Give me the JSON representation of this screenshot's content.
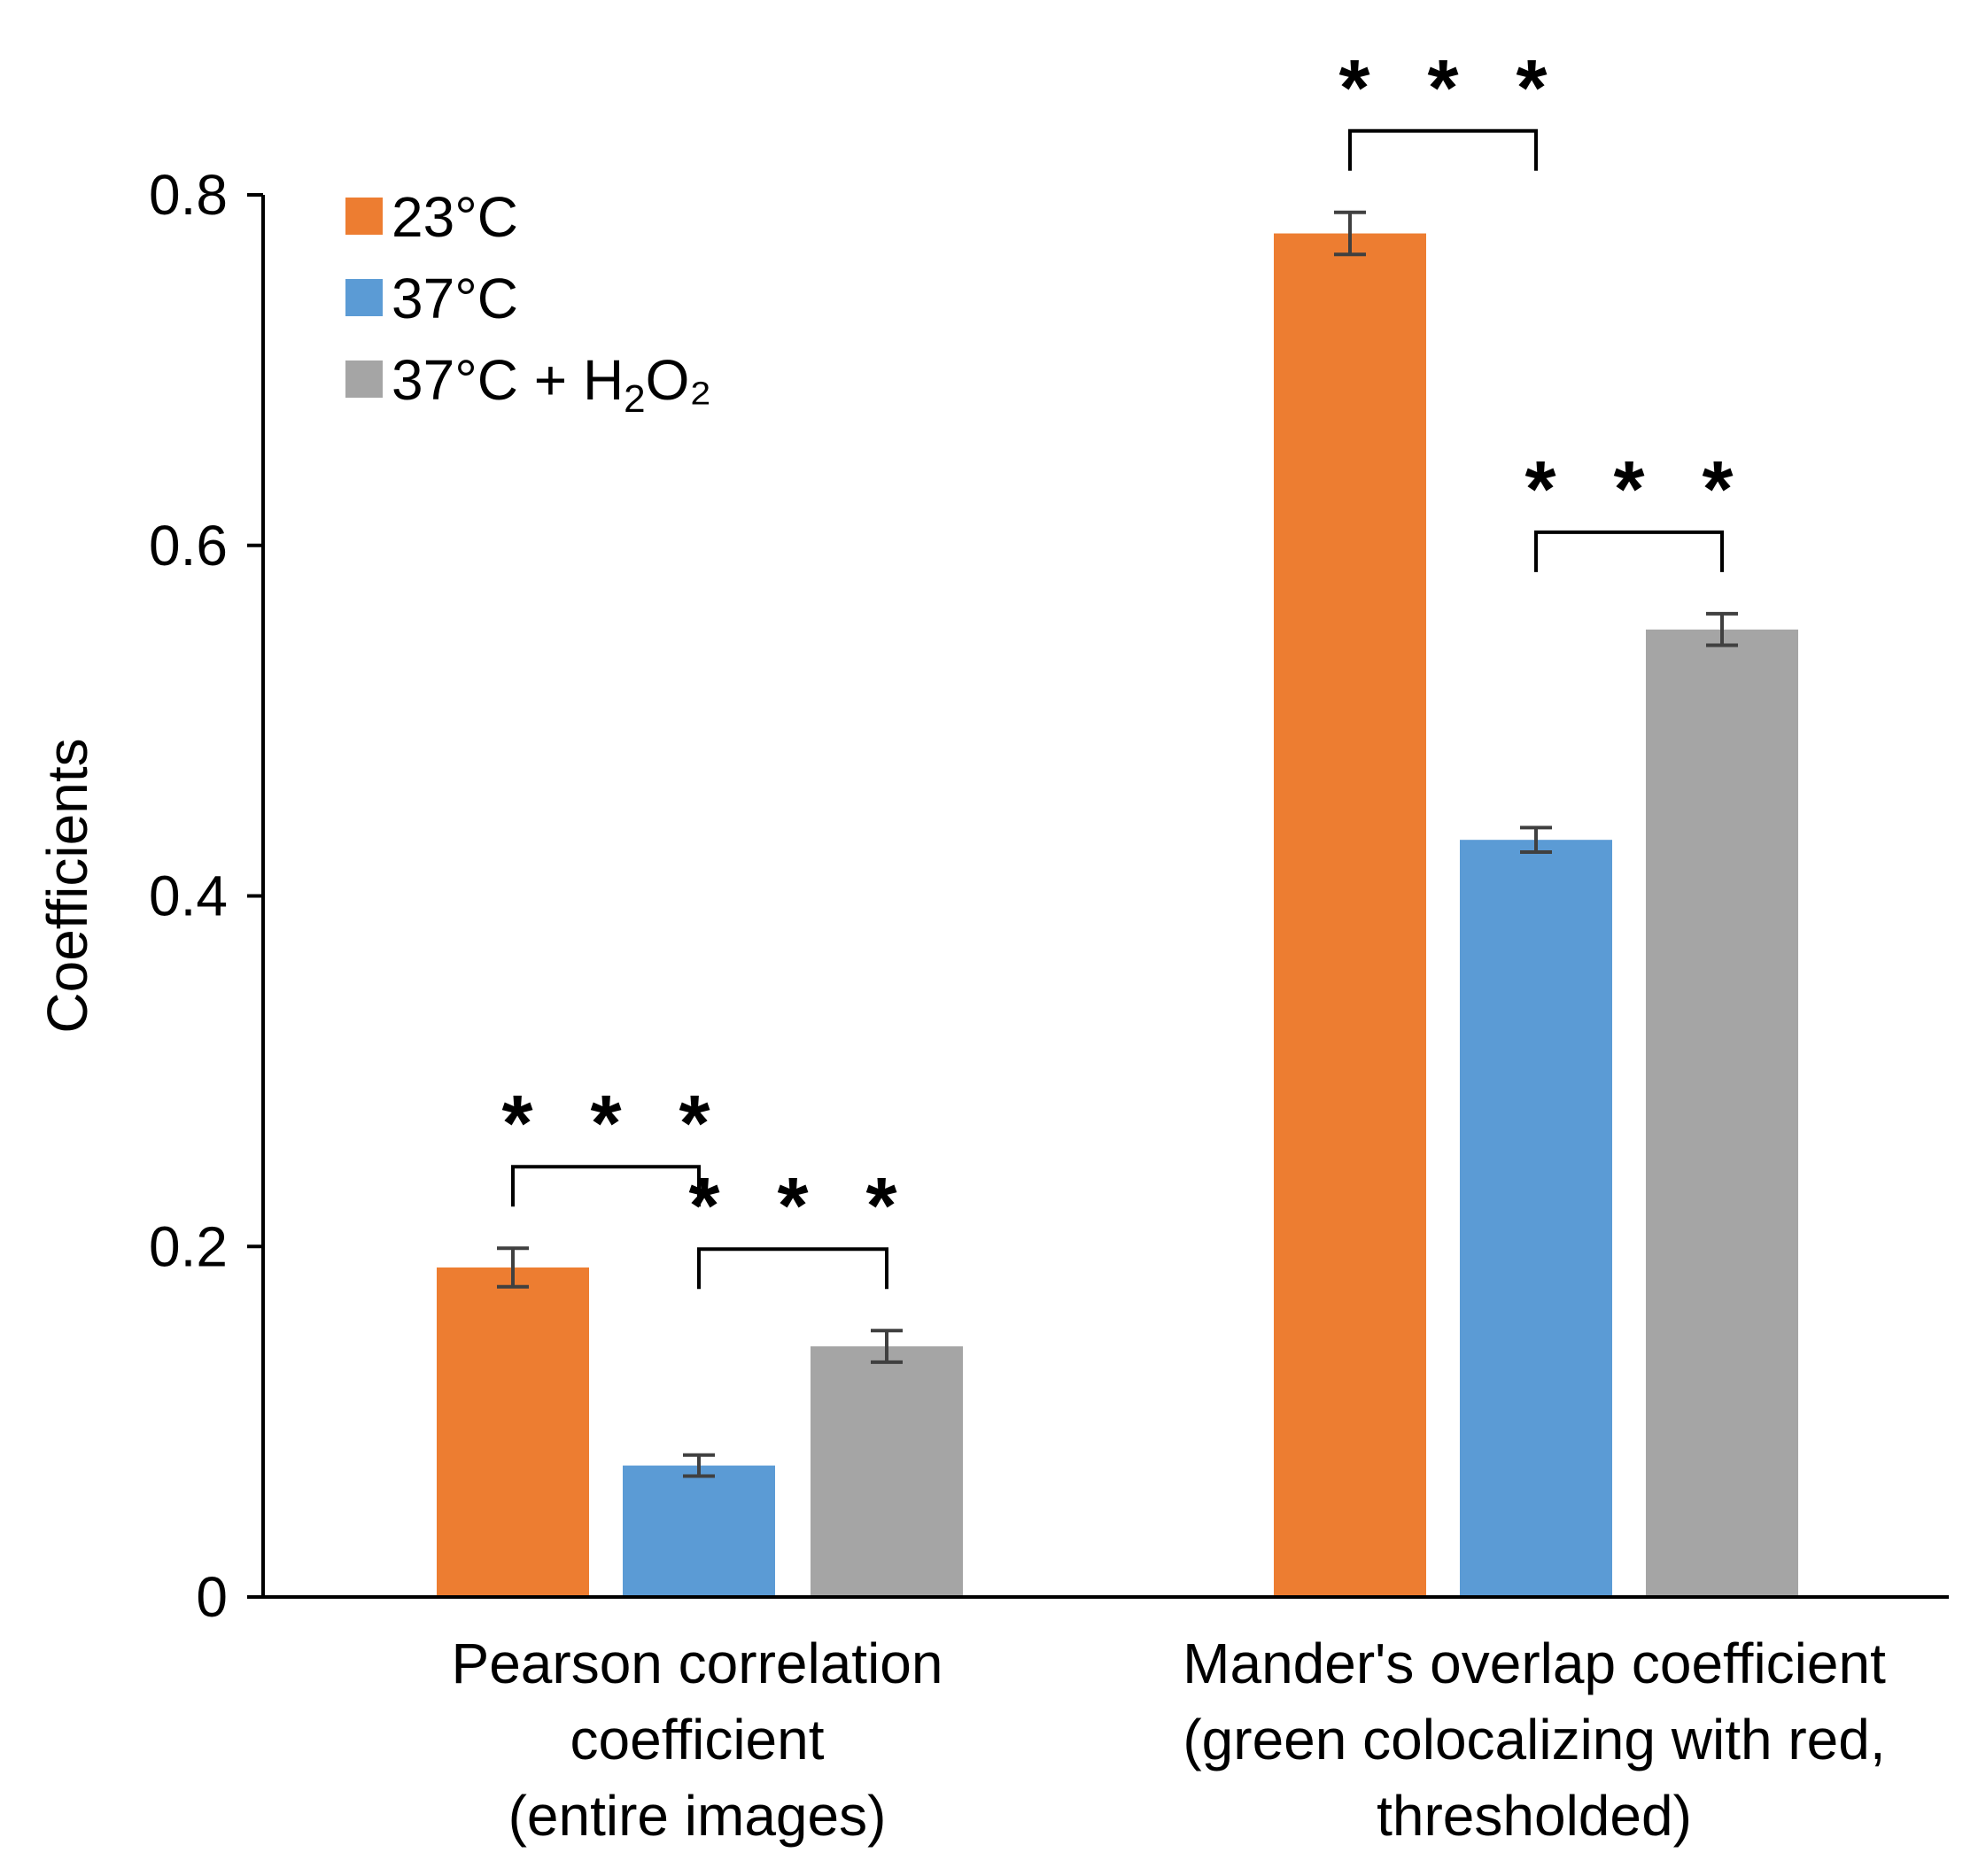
{
  "chart_data": {
    "type": "bar",
    "title": "",
    "xlabel": "",
    "ylabel": "Coefficients",
    "ylim": [
      0,
      0.8
    ],
    "yticks": [
      {
        "value": 0,
        "label": "0"
      },
      {
        "value": 0.2,
        "label": "0.2"
      },
      {
        "value": 0.4,
        "label": "0.4"
      },
      {
        "value": 0.6,
        "label": "0.6"
      },
      {
        "value": 0.8,
        "label": "0.8"
      }
    ],
    "categories": [
      {
        "lines": [
          "Pearson correlation",
          "coefficient",
          "(entire images)"
        ]
      },
      {
        "lines": [
          "Mander's overlap coefficient",
          "(green colocalizing with red,",
          "thresholded)"
        ]
      }
    ],
    "series": [
      {
        "name": "23°C",
        "label_main": "23°C",
        "label_sub": "",
        "label_end": "",
        "color": "#ED7D31",
        "values": [
          0.188,
          0.778
        ],
        "errors": [
          0.011,
          0.012
        ]
      },
      {
        "name": "37°C",
        "label_main": "37°C",
        "label_sub": "",
        "label_end": "",
        "color": "#5B9BD5",
        "values": [
          0.075,
          0.432
        ],
        "errors": [
          0.006,
          0.007
        ]
      },
      {
        "name": "37°C + H2O2",
        "label_main": "37°C + H",
        "label_sub": "2",
        "label_end": "O₂",
        "color": "#A5A5A5",
        "values": [
          0.143,
          0.552
        ],
        "errors": [
          0.009,
          0.009
        ]
      }
    ],
    "significance": [
      {
        "category": 0,
        "from_series": 0,
        "to_series": 1,
        "label": "* * *"
      },
      {
        "category": 0,
        "from_series": 1,
        "to_series": 2,
        "label": "* * *"
      },
      {
        "category": 1,
        "from_series": 0,
        "to_series": 1,
        "label": "* * *"
      },
      {
        "category": 1,
        "from_series": 1,
        "to_series": 2,
        "label": "* * *"
      }
    ],
    "legend": {
      "position": "top-left"
    }
  }
}
